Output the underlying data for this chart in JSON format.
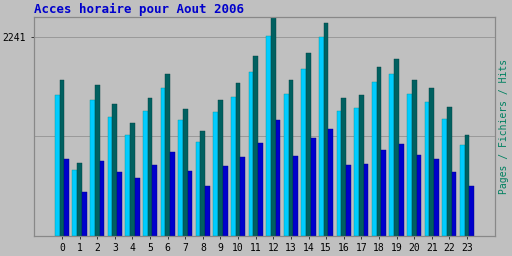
{
  "title": "Acces horaire pour Aout 2006",
  "title_color": "#0000CC",
  "title_fontsize": 9,
  "ylabel": "Pages / Fichiers / Hits",
  "ylabel_color": "#008060",
  "ylabel_fontsize": 7,
  "ytick_label": "2241",
  "ytick_fontsize": 7,
  "background_color": "#C0C0C0",
  "plot_bg_color": "#C0C0C0",
  "grid_color": "#999999",
  "hours": [
    0,
    1,
    2,
    3,
    4,
    5,
    6,
    7,
    8,
    9,
    10,
    11,
    12,
    13,
    14,
    15,
    16,
    17,
    18,
    19,
    20,
    21,
    22,
    23
  ],
  "hits": [
    1580,
    740,
    1530,
    1340,
    1140,
    1410,
    1660,
    1300,
    1060,
    1390,
    1560,
    1840,
    2250,
    1600,
    1880,
    2241,
    1410,
    1440,
    1730,
    1820,
    1600,
    1510,
    1310,
    1020
  ],
  "pages": [
    1750,
    820,
    1700,
    1480,
    1270,
    1550,
    1820,
    1430,
    1180,
    1530,
    1720,
    2020,
    2480,
    1760,
    2060,
    2400,
    1550,
    1580,
    1900,
    1990,
    1760,
    1660,
    1450,
    1130
  ],
  "fichiers": [
    860,
    490,
    840,
    720,
    650,
    800,
    940,
    730,
    560,
    790,
    890,
    1040,
    1300,
    900,
    1100,
    1200,
    800,
    810,
    970,
    1030,
    910,
    860,
    720,
    560
  ],
  "color_hits": "#00CCFF",
  "color_fichiers": "#0000CC",
  "color_pages": "#006060",
  "bar_width": 0.27
}
